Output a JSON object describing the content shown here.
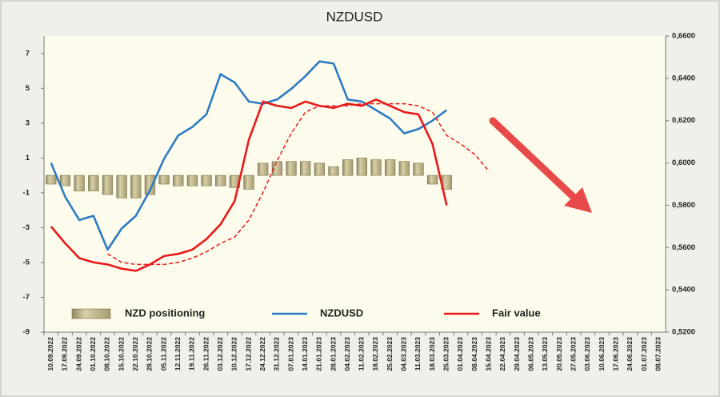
{
  "chart_data": {
    "type": "bar",
    "title": "NZDUSD",
    "categories": [
      "10.09.2022",
      "17.09.2022",
      "24.09.2022",
      "01.10.2022",
      "08.10.2022",
      "15.10.2022",
      "22.10.2022",
      "29.10.2022",
      "05.11.2022",
      "12.11.2022",
      "19.11.2022",
      "26.11.2022",
      "03.12.2022",
      "10.12.2022",
      "17.12.2022",
      "24.12.2022",
      "31.12.2022",
      "07.01.2023",
      "14.01.2023",
      "21.01.2023",
      "28.01.2023",
      "04.02.2023",
      "11.02.2023",
      "18.02.2023",
      "25.02.2023",
      "04.03.2023",
      "11.03.2023",
      "18.03.2023",
      "25.03.2023",
      "01.04.2023",
      "08.04.2023",
      "15.04.2023",
      "22.04.2023",
      "29.04.2023",
      "06.05.2023",
      "13.05.2023",
      "20.05.2023",
      "27.05.2023",
      "03.06.2023",
      "10.06.2023",
      "17.06.2023",
      "24.06.2023",
      "01.07.2023",
      "08.07.2023"
    ],
    "series": [
      {
        "name": "NZD positioning",
        "type": "bar",
        "axis": "y",
        "color": "#c2b98f",
        "values": [
          -0.5,
          -0.6,
          -0.9,
          -0.9,
          -1.1,
          -1.3,
          -1.3,
          -1.1,
          -0.5,
          -0.6,
          -0.6,
          -0.6,
          -0.6,
          -0.7,
          -0.8,
          0.7,
          0.8,
          0.8,
          0.8,
          0.7,
          0.5,
          0.9,
          1.0,
          0.9,
          0.9,
          0.8,
          0.7,
          -0.5,
          -0.8,
          null,
          null,
          null,
          null,
          null,
          null,
          null,
          null,
          null,
          null,
          null,
          null,
          null,
          null,
          null
        ]
      },
      {
        "name": "NZDUSD",
        "type": "line",
        "axis": "y2",
        "color": "#2e7bc4",
        "values": [
          0.6,
          0.584,
          0.573,
          0.575,
          0.559,
          0.569,
          0.575,
          0.587,
          0.602,
          0.613,
          0.617,
          0.623,
          0.642,
          0.638,
          0.629,
          0.628,
          0.63,
          0.635,
          0.641,
          0.648,
          0.647,
          0.63,
          0.629,
          0.625,
          0.621,
          0.614,
          0.616,
          0.62,
          0.625,
          null,
          null,
          null,
          null,
          null,
          null,
          null,
          null,
          null,
          null,
          null,
          null,
          null,
          null,
          null
        ]
      },
      {
        "name": "Fair value",
        "type": "line",
        "axis": "y2",
        "color": "#e8191b",
        "values": [
          0.57,
          0.562,
          0.555,
          0.553,
          0.552,
          0.55,
          0.549,
          0.552,
          0.556,
          0.557,
          0.559,
          0.564,
          0.571,
          0.582,
          0.611,
          0.629,
          0.627,
          0.626,
          0.629,
          0.627,
          0.626,
          0.628,
          0.627,
          0.63,
          0.627,
          0.624,
          0.623,
          0.609,
          0.58,
          null,
          null,
          null,
          null,
          null,
          null,
          null,
          null,
          null,
          null,
          null,
          null,
          null,
          null,
          null
        ]
      },
      {
        "type": "line",
        "axis": "y2",
        "color": "#e8191b",
        "dashed": true,
        "values": [
          null,
          null,
          null,
          null,
          0.557,
          0.553,
          0.552,
          0.552,
          0.552,
          0.553,
          0.555,
          0.558,
          0.562,
          0.565,
          0.573,
          0.586,
          0.601,
          0.614,
          0.624,
          0.627,
          0.627,
          0.627,
          0.628,
          0.628,
          0.628,
          0.628,
          0.627,
          0.624,
          0.613,
          0.609,
          0.604,
          0.596,
          null,
          null,
          null,
          null,
          null,
          null,
          null,
          null,
          null,
          null,
          null,
          null
        ]
      }
    ],
    "ylim": [
      -9,
      8
    ],
    "yticks": [
      -9,
      -7,
      -5,
      -3,
      -1,
      1,
      3,
      5,
      7
    ],
    "y2lim": [
      0.52,
      0.66
    ],
    "y2ticks": [
      {
        "value": 0.52,
        "label": "0,5200"
      },
      {
        "value": 0.54,
        "label": "0,5400"
      },
      {
        "value": 0.56,
        "label": "0,5600"
      },
      {
        "value": 0.58,
        "label": "0,5800"
      },
      {
        "value": 0.6,
        "label": "0,6000"
      },
      {
        "value": 0.62,
        "label": "0,6200"
      },
      {
        "value": 0.64,
        "label": "0,6400"
      },
      {
        "value": 0.66,
        "label": "0,6600"
      }
    ]
  }
}
